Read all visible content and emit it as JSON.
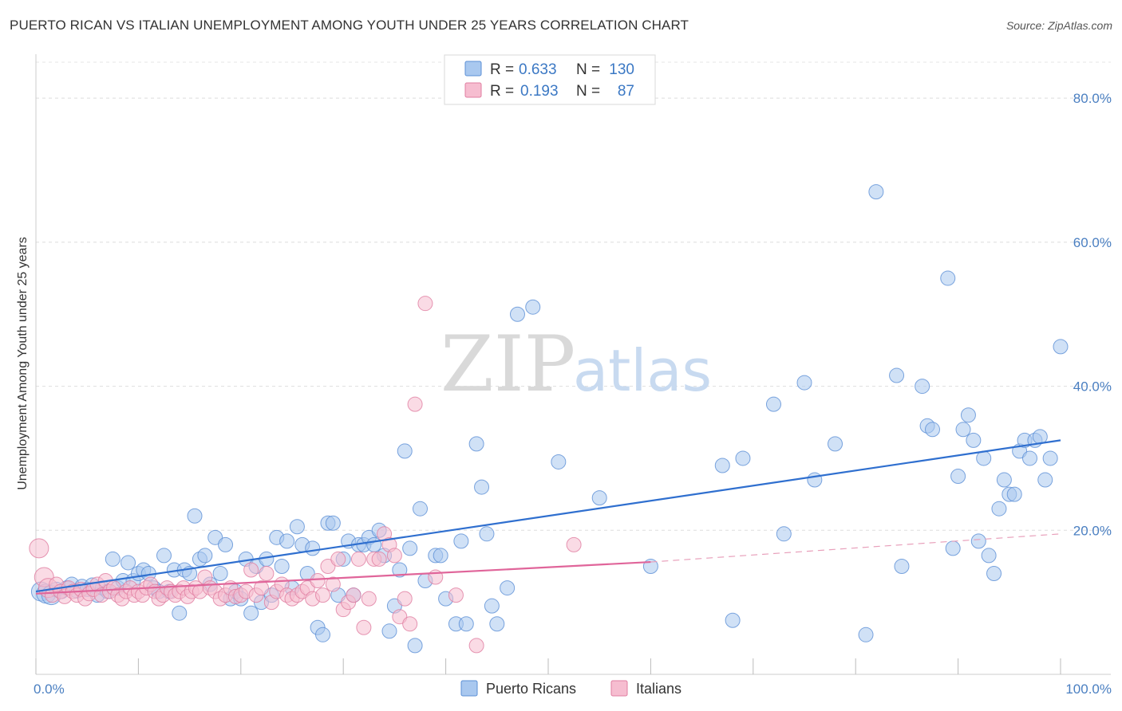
{
  "header": {
    "title": "PUERTO RICAN VS ITALIAN UNEMPLOYMENT AMONG YOUTH UNDER 25 YEARS CORRELATION CHART",
    "source": "Source: ZipAtlas.com"
  },
  "watermark": {
    "zip": "ZIP",
    "atlas": "atlas"
  },
  "stats_legend": [
    {
      "r_label": "R =",
      "r_value": "0.633",
      "n_label": "N =",
      "n_value": "130",
      "color": "#a9c8ef",
      "stroke": "#5b8fd6"
    },
    {
      "r_label": "R =",
      "r_value": "0.193",
      "n_label": "N =",
      "n_value": "87",
      "color": "#f6bdd0",
      "stroke": "#e07da0"
    }
  ],
  "chart_data": {
    "type": "scatter",
    "ylabel": "Unemployment Among Youth under 25 years",
    "xlim": [
      0,
      100
    ],
    "ylim": [
      0,
      85
    ],
    "x_tick_labels": [
      "0.0%",
      "100.0%"
    ],
    "y_ticks": [
      20,
      40,
      60,
      80
    ],
    "y_tick_labels": [
      "20.0%",
      "40.0%",
      "60.0%",
      "80.0%"
    ],
    "grid": true,
    "legend": "top-center",
    "series": [
      {
        "name": "Puerto Ricans",
        "color": "#a9c8ef",
        "stroke": "#5b8fd6",
        "trend": {
          "x": [
            0,
            100
          ],
          "y": [
            11.5,
            32.5
          ],
          "color": "#2f6fcf"
        },
        "points": [
          [
            0.5,
            11.5
          ],
          [
            1.0,
            11.2
          ],
          [
            1.5,
            11.0
          ],
          [
            2.0,
            11.8
          ],
          [
            2.5,
            11.5
          ],
          [
            3.0,
            12.0
          ],
          [
            3.5,
            12.5
          ],
          [
            4.0,
            11.6
          ],
          [
            4.5,
            12.2
          ],
          [
            5.0,
            11.8
          ],
          [
            5.5,
            12.4
          ],
          [
            6.0,
            11.0
          ],
          [
            6.5,
            12.0
          ],
          [
            7.0,
            11.5
          ],
          [
            7.5,
            16.0
          ],
          [
            8.0,
            12.0
          ],
          [
            8.5,
            13.0
          ],
          [
            9.0,
            15.5
          ],
          [
            9.5,
            13.0
          ],
          [
            10.0,
            14.0
          ],
          [
            10.5,
            14.5
          ],
          [
            11.0,
            14.0
          ],
          [
            11.5,
            12.0
          ],
          [
            12.0,
            11.5
          ],
          [
            12.5,
            16.5
          ],
          [
            13.0,
            11.5
          ],
          [
            13.5,
            14.5
          ],
          [
            14.0,
            8.5
          ],
          [
            14.5,
            14.5
          ],
          [
            15.0,
            14.0
          ],
          [
            15.5,
            22.0
          ],
          [
            16.0,
            16.0
          ],
          [
            16.5,
            16.5
          ],
          [
            17.0,
            12.5
          ],
          [
            17.5,
            19.0
          ],
          [
            18.0,
            14.0
          ],
          [
            18.5,
            18.0
          ],
          [
            19.0,
            10.5
          ],
          [
            19.5,
            11.5
          ],
          [
            20.0,
            10.5
          ],
          [
            20.5,
            16.0
          ],
          [
            21.0,
            8.5
          ],
          [
            21.5,
            15.0
          ],
          [
            22.0,
            10.0
          ],
          [
            22.5,
            16.0
          ],
          [
            23.0,
            11.0
          ],
          [
            23.5,
            19.0
          ],
          [
            24.0,
            15.0
          ],
          [
            24.5,
            18.5
          ],
          [
            25.0,
            12.0
          ],
          [
            25.5,
            20.5
          ],
          [
            26.0,
            18.0
          ],
          [
            26.5,
            14.0
          ],
          [
            27.0,
            17.5
          ],
          [
            27.5,
            6.5
          ],
          [
            28.0,
            5.5
          ],
          [
            28.5,
            21.0
          ],
          [
            29.0,
            21.0
          ],
          [
            29.5,
            11.0
          ],
          [
            30.0,
            16.0
          ],
          [
            30.5,
            18.5
          ],
          [
            31.0,
            11.0
          ],
          [
            31.5,
            18.0
          ],
          [
            32.0,
            18.0
          ],
          [
            32.5,
            19.0
          ],
          [
            33.0,
            18.0
          ],
          [
            33.5,
            20.0
          ],
          [
            34.0,
            16.5
          ],
          [
            34.5,
            6.0
          ],
          [
            35.0,
            9.5
          ],
          [
            35.5,
            14.5
          ],
          [
            36.0,
            31.0
          ],
          [
            36.5,
            17.5
          ],
          [
            37.0,
            4.0
          ],
          [
            37.5,
            23.0
          ],
          [
            38.0,
            13.0
          ],
          [
            39.0,
            16.5
          ],
          [
            39.5,
            16.5
          ],
          [
            40.0,
            10.5
          ],
          [
            41.0,
            7.0
          ],
          [
            41.5,
            18.5
          ],
          [
            42.0,
            7.0
          ],
          [
            43.0,
            32.0
          ],
          [
            43.5,
            26.0
          ],
          [
            44.0,
            19.5
          ],
          [
            44.5,
            9.5
          ],
          [
            45.0,
            7.0
          ],
          [
            46.0,
            12.0
          ],
          [
            47.0,
            50.0
          ],
          [
            48.5,
            51.0
          ],
          [
            51.0,
            29.5
          ],
          [
            55.0,
            24.5
          ],
          [
            60.0,
            15.0
          ],
          [
            67.0,
            29.0
          ],
          [
            68.0,
            7.5
          ],
          [
            69.0,
            30.0
          ],
          [
            72.0,
            37.5
          ],
          [
            73.0,
            19.5
          ],
          [
            75.0,
            40.5
          ],
          [
            76.0,
            27.0
          ],
          [
            78.0,
            32.0
          ],
          [
            81.0,
            5.5
          ],
          [
            82.0,
            67.0
          ],
          [
            84.0,
            41.5
          ],
          [
            84.5,
            15.0
          ],
          [
            86.5,
            40.0
          ],
          [
            87.0,
            34.5
          ],
          [
            87.5,
            34.0
          ],
          [
            89.0,
            55.0
          ],
          [
            89.5,
            17.5
          ],
          [
            90.0,
            27.5
          ],
          [
            90.5,
            34.0
          ],
          [
            91.0,
            36.0
          ],
          [
            91.5,
            32.5
          ],
          [
            92.0,
            18.5
          ],
          [
            92.5,
            30.0
          ],
          [
            93.0,
            16.5
          ],
          [
            93.5,
            14.0
          ],
          [
            94.0,
            23.0
          ],
          [
            94.5,
            27.0
          ],
          [
            95.0,
            25.0
          ],
          [
            95.5,
            25.0
          ],
          [
            96.0,
            31.0
          ],
          [
            96.5,
            32.5
          ],
          [
            97.0,
            30.0
          ],
          [
            97.5,
            32.5
          ],
          [
            98.0,
            33.0
          ],
          [
            98.5,
            27.0
          ],
          [
            99.0,
            30.0
          ],
          [
            100.0,
            45.5
          ]
        ]
      },
      {
        "name": "Italians",
        "color": "#f6bdd0",
        "stroke": "#e07da0",
        "trend": {
          "x": [
            0,
            60
          ],
          "y": [
            11.2,
            15.6
          ],
          "color": "#e0659a"
        },
        "trend_extension": {
          "x": [
            60,
            100
          ],
          "y": [
            15.6,
            19.5
          ],
          "color": "#e8a0bb"
        },
        "points": [
          [
            0.3,
            17.5
          ],
          [
            0.8,
            13.5
          ],
          [
            1.2,
            12.0
          ],
          [
            1.6,
            11.0
          ],
          [
            2.0,
            12.5
          ],
          [
            2.4,
            11.5
          ],
          [
            2.8,
            10.8
          ],
          [
            3.2,
            12.0
          ],
          [
            3.6,
            11.5
          ],
          [
            4.0,
            11.0
          ],
          [
            4.4,
            11.8
          ],
          [
            4.8,
            10.5
          ],
          [
            5.2,
            11.2
          ],
          [
            5.6,
            11.8
          ],
          [
            6.0,
            12.5
          ],
          [
            6.4,
            11.0
          ],
          [
            6.8,
            13.0
          ],
          [
            7.2,
            11.5
          ],
          [
            7.6,
            12.0
          ],
          [
            8.0,
            11.0
          ],
          [
            8.4,
            10.5
          ],
          [
            8.8,
            11.5
          ],
          [
            9.2,
            12.0
          ],
          [
            9.6,
            11.0
          ],
          [
            10.0,
            11.5
          ],
          [
            10.4,
            11.0
          ],
          [
            10.8,
            12.0
          ],
          [
            11.2,
            12.5
          ],
          [
            11.6,
            11.5
          ],
          [
            12.0,
            10.5
          ],
          [
            12.4,
            11.0
          ],
          [
            12.8,
            12.0
          ],
          [
            13.2,
            11.5
          ],
          [
            13.6,
            11.0
          ],
          [
            14.0,
            11.5
          ],
          [
            14.4,
            12.0
          ],
          [
            14.8,
            10.8
          ],
          [
            15.2,
            11.5
          ],
          [
            15.6,
            12.0
          ],
          [
            16.0,
            11.5
          ],
          [
            16.5,
            13.5
          ],
          [
            17.0,
            12.0
          ],
          [
            17.5,
            11.5
          ],
          [
            18.0,
            10.5
          ],
          [
            18.5,
            11.0
          ],
          [
            19.0,
            12.0
          ],
          [
            19.5,
            10.8
          ],
          [
            20.0,
            11.0
          ],
          [
            20.5,
            11.5
          ],
          [
            21.0,
            14.5
          ],
          [
            21.5,
            11.0
          ],
          [
            22.0,
            12.0
          ],
          [
            22.5,
            14.0
          ],
          [
            23.0,
            10.0
          ],
          [
            23.5,
            11.5
          ],
          [
            24.0,
            12.5
          ],
          [
            24.5,
            11.0
          ],
          [
            25.0,
            10.5
          ],
          [
            25.5,
            11.0
          ],
          [
            26.0,
            11.5
          ],
          [
            26.5,
            12.0
          ],
          [
            27.0,
            10.5
          ],
          [
            27.5,
            13.0
          ],
          [
            28.0,
            11.0
          ],
          [
            28.5,
            15.0
          ],
          [
            29.0,
            12.5
          ],
          [
            29.5,
            16.0
          ],
          [
            30.0,
            9.0
          ],
          [
            30.5,
            10.0
          ],
          [
            31.0,
            11.0
          ],
          [
            31.5,
            16.0
          ],
          [
            32.0,
            6.5
          ],
          [
            32.5,
            10.5
          ],
          [
            33.0,
            16.0
          ],
          [
            33.5,
            16.0
          ],
          [
            34.0,
            19.5
          ],
          [
            34.5,
            18.0
          ],
          [
            35.0,
            16.5
          ],
          [
            35.5,
            8.0
          ],
          [
            36.0,
            10.5
          ],
          [
            36.5,
            7.0
          ],
          [
            37.0,
            37.5
          ],
          [
            38.0,
            51.5
          ],
          [
            39.0,
            13.5
          ],
          [
            41.0,
            11.0
          ],
          [
            43.0,
            4.0
          ],
          [
            52.5,
            18.0
          ]
        ]
      }
    ]
  }
}
